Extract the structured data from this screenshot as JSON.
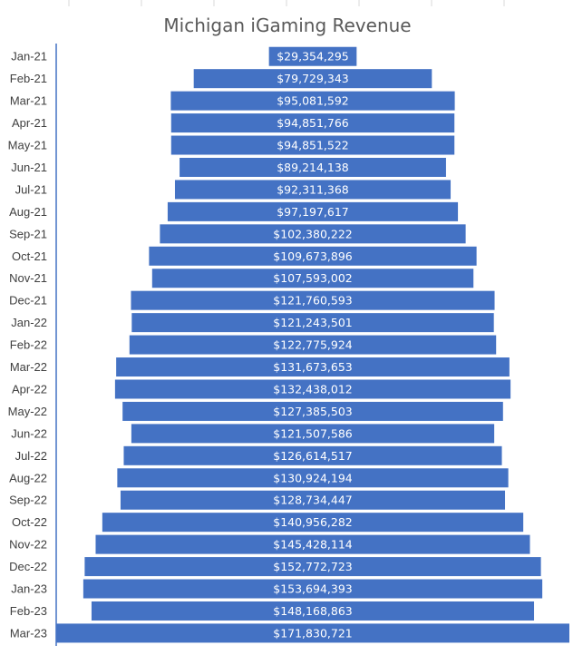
{
  "chart_data": {
    "type": "bar",
    "orientation": "horizontal-centered",
    "title": "Michigan iGaming Revenue",
    "xlabel": "",
    "ylabel": "",
    "grid": true,
    "categories": [
      "Jan-21",
      "Feb-21",
      "Mar-21",
      "Apr-21",
      "May-21",
      "Jun-21",
      "Jul-21",
      "Aug-21",
      "Sep-21",
      "Oct-21",
      "Nov-21",
      "Dec-21",
      "Jan-22",
      "Feb-22",
      "Mar-22",
      "Apr-22",
      "May-22",
      "Jun-22",
      "Jul-22",
      "Aug-22",
      "Sep-22",
      "Oct-22",
      "Nov-22",
      "Dec-22",
      "Jan-23",
      "Feb-23",
      "Mar-23"
    ],
    "values": [
      29354295,
      79729343,
      95081592,
      94851766,
      94851522,
      89214138,
      92311368,
      97197617,
      102380222,
      109673896,
      107593002,
      121760593,
      121243501,
      122775924,
      131673653,
      132438012,
      127385503,
      121507586,
      126614517,
      130924194,
      128734447,
      140956282,
      145428114,
      152772723,
      153694393,
      148168863,
      171830721
    ],
    "labels": [
      "$29,354,295",
      "$79,729,343",
      "$95,081,592",
      "$94,851,766",
      "$94,851,522",
      "$89,214,138",
      "$92,311,368",
      "$97,197,617",
      "$102,380,222",
      "$109,673,896",
      "$107,593,002",
      "$121,760,593",
      "$121,243,501",
      "$122,775,924",
      "$131,673,653",
      "$132,438,012",
      "$127,385,503",
      "$121,507,586",
      "$126,614,517",
      "$130,924,194",
      "$128,734,447",
      "$140,956,282",
      "$145,428,114",
      "$152,772,723",
      "$153,694,393",
      "$148,168,863",
      "$171,830,721"
    ],
    "bar_color": "#4472C4",
    "label_color": "#FFFFFF"
  }
}
